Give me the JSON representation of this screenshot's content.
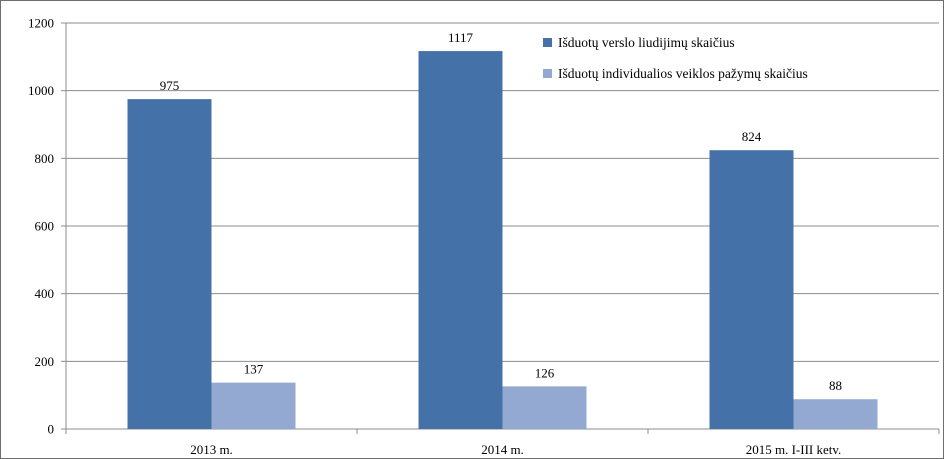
{
  "chart_data": {
    "type": "bar",
    "title": "",
    "xlabel": "",
    "ylabel": "",
    "categories": [
      "2013 m.",
      "2014 m.",
      "2015 m. I-III ketv."
    ],
    "series": [
      {
        "name": "Išduotų verslo liudijimų skaičius",
        "values": [
          975,
          1117,
          824
        ],
        "color": "#4472a8"
      },
      {
        "name": "Išduotų individualios veiklos pažymų skaičius",
        "values": [
          137,
          126,
          88
        ],
        "color": "#94a9d2"
      }
    ],
    "ylim": [
      0,
      1200
    ],
    "yticks": [
      0,
      200,
      400,
      600,
      800,
      1000,
      1200
    ],
    "grid": true,
    "legend_position": "top-right",
    "data_labels": true
  }
}
